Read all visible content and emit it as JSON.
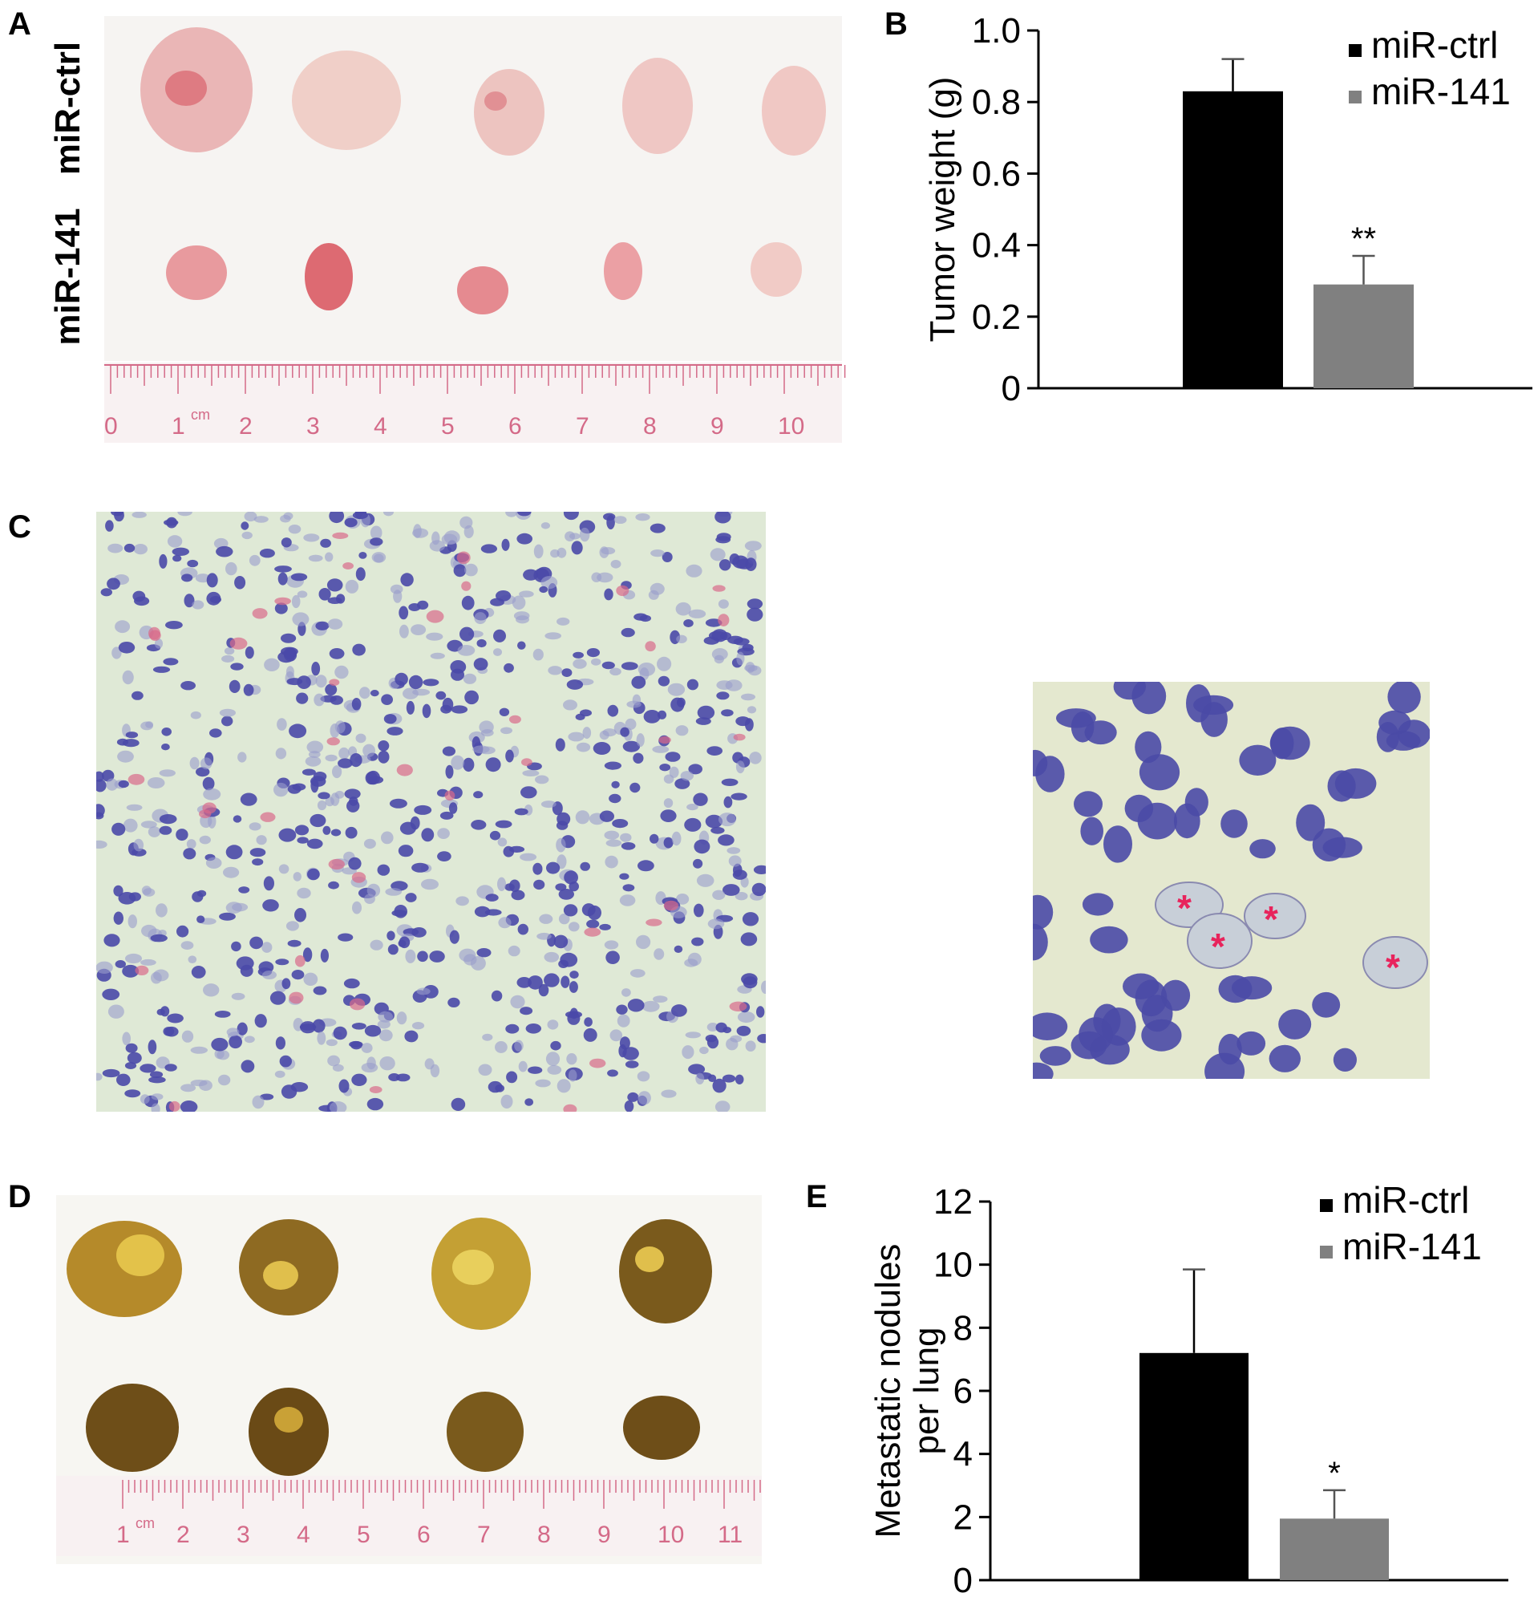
{
  "panels": {
    "A": "A",
    "B": "B",
    "C": "C",
    "D": "D",
    "E": "E"
  },
  "panel_a": {
    "row_label_top": "miR-ctrl",
    "row_label_bottom": "miR-141",
    "ruler_numbers": [
      "0",
      "1",
      "2",
      "3",
      "4",
      "5",
      "6",
      "7",
      "8",
      "9",
      "10"
    ],
    "ruler_unit": "cm"
  },
  "panel_d": {
    "ruler_numbers": [
      "1",
      "2",
      "3",
      "4",
      "5",
      "6",
      "7",
      "8",
      "9",
      "10",
      "11"
    ],
    "ruler_unit": "cm"
  },
  "panel_c": {
    "asterisk": "*"
  },
  "colors": {
    "ctrl": "#000000",
    "mir141": "#808080",
    "ruler": "#d46a88",
    "tissue_bg": "#dfe9d6",
    "nucleus": "#4a49a8",
    "asterisk": "#e8245c"
  },
  "chart_data": [
    {
      "type": "bar",
      "panel": "B",
      "categories": [
        "miR-ctrl",
        "miR-141"
      ],
      "values": [
        0.83,
        0.29
      ],
      "errors": [
        0.09,
        0.08
      ],
      "significance": [
        "",
        "**"
      ],
      "ylabel": "Tumor weight (g)",
      "ylim": [
        0,
        1.0
      ],
      "yticks": [
        "0",
        "0.2",
        "0.4",
        "0.6",
        "0.8",
        "1.0"
      ],
      "legend": [
        "miR-ctrl",
        "miR-141"
      ],
      "legend_position": "top-right"
    },
    {
      "type": "bar",
      "panel": "E",
      "categories": [
        "miR-ctrl",
        "miR-141"
      ],
      "values": [
        7.2,
        1.95
      ],
      "errors": [
        2.65,
        0.9
      ],
      "significance": [
        "",
        "*"
      ],
      "ylabel_line1": "Metastatic nodules",
      "ylabel_line2": "per lung",
      "ylim": [
        0,
        12
      ],
      "yticks": [
        "0",
        "2",
        "4",
        "6",
        "8",
        "10",
        "12"
      ],
      "legend": [
        "miR-ctrl",
        "miR-141"
      ],
      "legend_position": "top-right"
    }
  ]
}
